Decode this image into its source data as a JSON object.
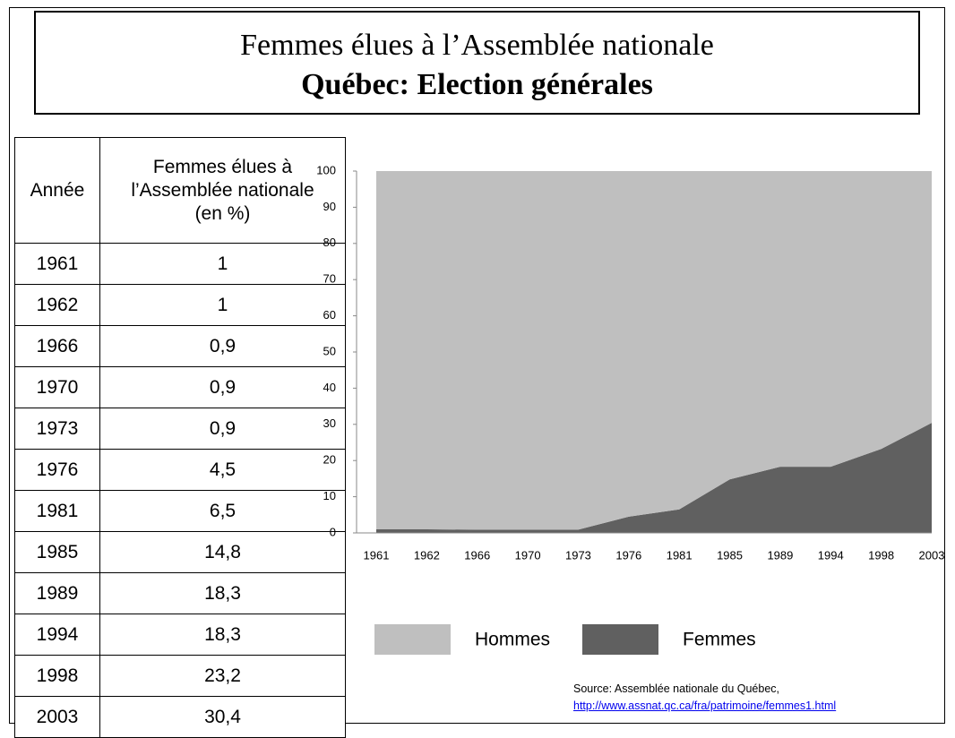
{
  "header": {
    "title": "Femmes élues à l’Assemblée nationale",
    "subtitle": "Québec: Election générales"
  },
  "table": {
    "columns": [
      "Année",
      "Femmes élues à l’Assemblée nationale (en %)"
    ],
    "rows": [
      [
        "1961",
        "1"
      ],
      [
        "1962",
        "1"
      ],
      [
        "1966",
        "0,9"
      ],
      [
        "1970",
        "0,9"
      ],
      [
        "1973",
        "0,9"
      ],
      [
        "1976",
        "4,5"
      ],
      [
        "1981",
        "6,5"
      ],
      [
        "1985",
        "14,8"
      ],
      [
        "1989",
        "18,3"
      ],
      [
        "1994",
        "18,3"
      ],
      [
        "1998",
        "23,2"
      ],
      [
        "2003",
        "30,4"
      ]
    ]
  },
  "chart_data": {
    "type": "stacked_area",
    "categories": [
      "1961",
      "1962",
      "1966",
      "1970",
      "1973",
      "1976",
      "1981",
      "1985",
      "1989",
      "1994",
      "1998",
      "2003"
    ],
    "series": [
      {
        "name": "Hommes",
        "color": "#bfbfbf",
        "values": [
          99,
          99,
          99.1,
          99.1,
          99.1,
          95.5,
          93.5,
          85.2,
          81.7,
          81.7,
          76.8,
          69.6
        ]
      },
      {
        "name": "Femmes",
        "color": "#606060",
        "values": [
          1,
          1,
          0.9,
          0.9,
          0.9,
          4.5,
          6.5,
          14.8,
          18.3,
          18.3,
          23.2,
          30.4
        ]
      }
    ],
    "ylim": [
      0,
      100
    ],
    "yticks": [
      0,
      10,
      20,
      30,
      40,
      50,
      60,
      70,
      80,
      90,
      100
    ],
    "grid": false,
    "legend": "bottom"
  },
  "source": {
    "text": "Source: Assemblée nationale du Québec,",
    "link": "http://www.assnat.qc.ca/fra/patrimoine/femmes1.html"
  }
}
